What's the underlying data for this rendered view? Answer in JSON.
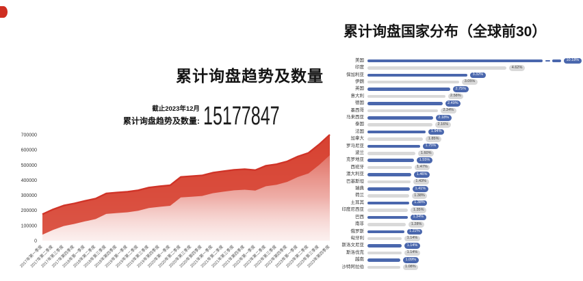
{
  "page": {
    "background": "#ffffff",
    "corner_mark_color": "#cf2e21"
  },
  "left_chart": {
    "title": "累计询盘趋势及数量",
    "as_of": "截止2023年12月",
    "total_label": "累计询盘趋势及数量:",
    "total_value": "15177847",
    "line_color": "#d03428",
    "fill_top_color": "#d6402f"
  },
  "right_chart": {
    "title": "累计询盘国家分布（全球前30）",
    "bar_color_primary": "#4a67ad",
    "bar_color_secondary": "#d9d9d9"
  },
  "chart_data": [
    {
      "id": "inquiry-trend",
      "type": "area",
      "title": "累计询盘趋势及数量",
      "x": [
        "2017年第一季度",
        "2017年第二季度",
        "2017年第三季度",
        "2017年第四季度",
        "2018年第一季度",
        "2018年第二季度",
        "2018年第三季度",
        "2018年第四季度",
        "2019年第一季度",
        "2019年第二季度",
        "2019年第三季度",
        "2019年第四季度",
        "2020年第一季度",
        "2020年第二季度",
        "2020年第三季度",
        "2020年第四季度",
        "2021年第一季度",
        "2021年第二季度",
        "2021年第三季度",
        "2021年第四季度",
        "2022年第一季度",
        "2022年第二季度",
        "2022年第三季度",
        "2022年第四季度",
        "2023年第一季度",
        "2023年第二季度",
        "2023年第三季度",
        "2023年第四季度"
      ],
      "values": [
        175000,
        207000,
        232000,
        246000,
        263000,
        278000,
        312000,
        318000,
        323000,
        333000,
        351000,
        359000,
        366000,
        421000,
        426000,
        431000,
        449000,
        459000,
        468000,
        472000,
        466000,
        495000,
        505000,
        524000,
        556000,
        580000,
        636000,
        700000
      ],
      "ylim": [
        0,
        700000
      ],
      "yticks": [
        0,
        100000,
        200000,
        300000,
        400000,
        500000,
        600000,
        700000
      ],
      "xlabel": "",
      "ylabel": "",
      "grid": false,
      "legend": "none"
    },
    {
      "id": "country-distribution",
      "type": "bar",
      "orientation": "horizontal",
      "title": "累计询盘国家分布（全球前30）",
      "categories": [
        "美国",
        "印度",
        "保加利亚",
        "伊朗",
        "英国",
        "意大利",
        "德国",
        "墨西哥",
        "马来西亚",
        "泰国",
        "法国",
        "加拿大",
        "罗马尼亚",
        "波兰",
        "克罗地亚",
        "西班牙",
        "澳大利亚",
        "巴基斯坦",
        "瑞典",
        "荷兰",
        "土耳其",
        "印度尼西亚",
        "巴西",
        "南非",
        "俄罗斯",
        "匈牙利",
        "斯洛文尼亚",
        "斯洛伐克",
        "越南",
        "沙特阿拉伯"
      ],
      "values": [
        10.18,
        4.62,
        3.32,
        3.05,
        2.75,
        2.58,
        2.49,
        2.34,
        2.18,
        2.16,
        1.94,
        1.85,
        1.75,
        1.6,
        1.55,
        1.47,
        1.46,
        1.43,
        1.41,
        1.38,
        1.38,
        1.35,
        1.34,
        1.28,
        1.22,
        1.14,
        1.14,
        1.14,
        1.09,
        1.08
      ],
      "value_suffix": "%",
      "first_bar_truncated": true
    }
  ]
}
